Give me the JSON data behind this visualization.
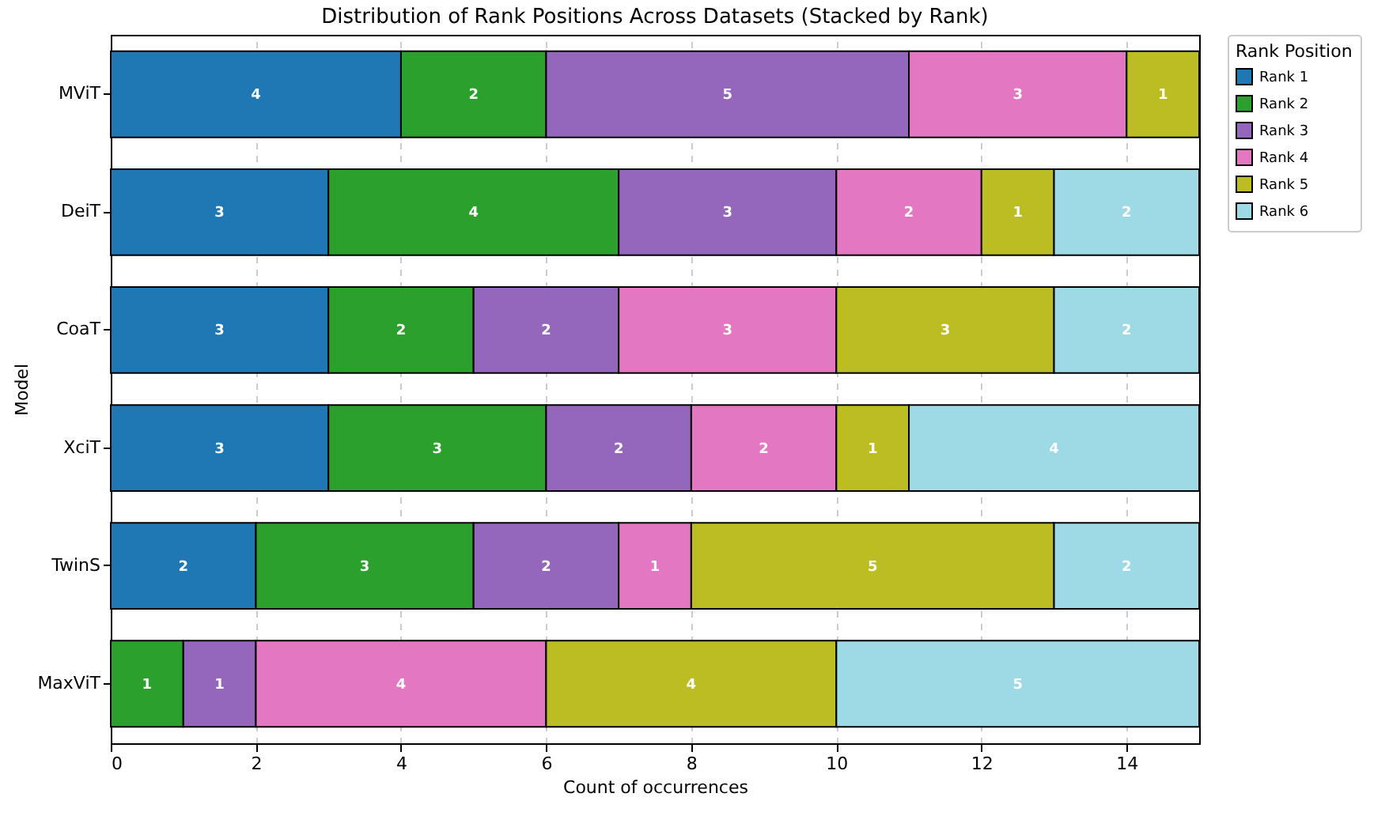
{
  "chart_data": {
    "type": "bar",
    "orientation": "horizontal",
    "stacked": true,
    "title": "Distribution of Rank Positions Across Datasets (Stacked by Rank)",
    "xlabel": "Count of occurrences",
    "ylabel": "Model",
    "legend_title": "Rank Position",
    "categories": [
      "MViT",
      "DeiT",
      "CoaT",
      "XciT",
      "TwinS",
      "MaxViT"
    ],
    "series": [
      {
        "name": "Rank 1",
        "color": "#1f77b4",
        "values": [
          4,
          3,
          3,
          3,
          2,
          null
        ]
      },
      {
        "name": "Rank 2",
        "color": "#2ca02c",
        "values": [
          2,
          4,
          2,
          3,
          3,
          1
        ]
      },
      {
        "name": "Rank 3",
        "color": "#9467bd",
        "values": [
          5,
          3,
          2,
          2,
          2,
          1
        ]
      },
      {
        "name": "Rank 4",
        "color": "#e377c2",
        "values": [
          3,
          2,
          3,
          2,
          1,
          4
        ]
      },
      {
        "name": "Rank 5",
        "color": "#bcbd22",
        "values": [
          1,
          1,
          3,
          1,
          5,
          4
        ]
      },
      {
        "name": "Rank 6",
        "color": "#9edae5",
        "values": [
          null,
          2,
          2,
          4,
          2,
          5
        ]
      }
    ],
    "xlim": [
      0,
      15
    ],
    "xticks": [
      0,
      2,
      4,
      6,
      8,
      10,
      12,
      14
    ],
    "grid": "x",
    "legend": "top right",
    "data_labels": true
  }
}
